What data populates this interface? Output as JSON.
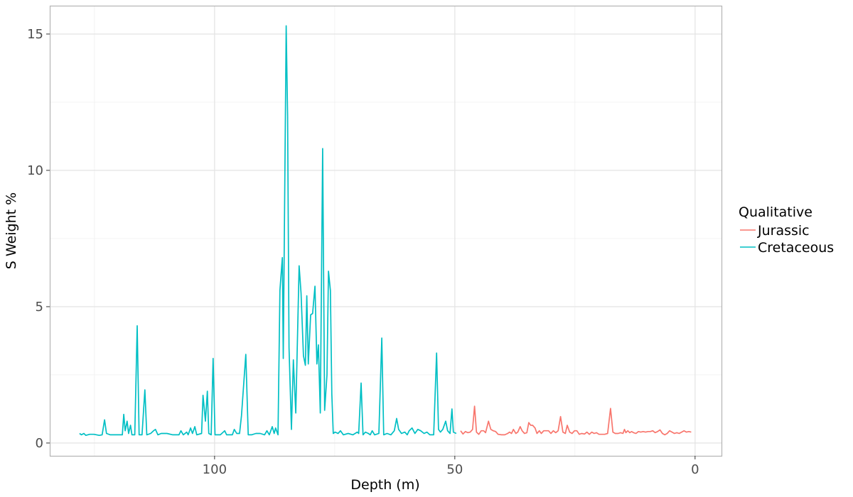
{
  "chart_data": {
    "type": "line",
    "title": "",
    "xlabel": "Depth (m)",
    "ylabel": "S Weight %",
    "xlim": [
      134.3,
      -5.5
    ],
    "x_reversed": true,
    "ylim": [
      -0.47,
      16.04
    ],
    "x_ticks": [
      100,
      50,
      0
    ],
    "x_tick_labels": [
      "100",
      "50",
      "0"
    ],
    "y_ticks": [
      0,
      5,
      10,
      15
    ],
    "y_tick_labels": [
      "0",
      "5",
      "10",
      "15"
    ],
    "grid": true,
    "legend": {
      "title": "Qualitative",
      "placement": "right"
    },
    "series": [
      {
        "name": "Jurassic",
        "color": "#F8766D",
        "points": [
          [
            48.8,
            0.45
          ],
          [
            48.3,
            0.33
          ],
          [
            47.8,
            0.42
          ],
          [
            47.3,
            0.38
          ],
          [
            46.8,
            0.4
          ],
          [
            46.3,
            0.5
          ],
          [
            45.9,
            1.35
          ],
          [
            45.5,
            0.4
          ],
          [
            45.0,
            0.32
          ],
          [
            44.5,
            0.45
          ],
          [
            44.0,
            0.45
          ],
          [
            43.6,
            0.38
          ],
          [
            43.0,
            0.8
          ],
          [
            42.5,
            0.5
          ],
          [
            42.0,
            0.45
          ],
          [
            41.5,
            0.42
          ],
          [
            41.0,
            0.32
          ],
          [
            40.3,
            0.3
          ],
          [
            39.6,
            0.3
          ],
          [
            39.0,
            0.35
          ],
          [
            38.6,
            0.4
          ],
          [
            38.2,
            0.35
          ],
          [
            37.8,
            0.5
          ],
          [
            37.3,
            0.35
          ],
          [
            36.9,
            0.4
          ],
          [
            36.4,
            0.6
          ],
          [
            36.0,
            0.45
          ],
          [
            35.5,
            0.35
          ],
          [
            35.0,
            0.38
          ],
          [
            34.6,
            0.75
          ],
          [
            34.2,
            0.65
          ],
          [
            33.8,
            0.65
          ],
          [
            33.3,
            0.55
          ],
          [
            32.9,
            0.35
          ],
          [
            32.4,
            0.45
          ],
          [
            32.0,
            0.35
          ],
          [
            31.5,
            0.45
          ],
          [
            31.0,
            0.45
          ],
          [
            30.5,
            0.45
          ],
          [
            30.0,
            0.35
          ],
          [
            29.5,
            0.45
          ],
          [
            29.0,
            0.38
          ],
          [
            28.5,
            0.45
          ],
          [
            28.0,
            0.97
          ],
          [
            27.5,
            0.4
          ],
          [
            27.0,
            0.35
          ],
          [
            26.6,
            0.65
          ],
          [
            26.1,
            0.4
          ],
          [
            25.6,
            0.35
          ],
          [
            25.1,
            0.45
          ],
          [
            24.6,
            0.45
          ],
          [
            24.1,
            0.32
          ],
          [
            23.6,
            0.35
          ],
          [
            23.0,
            0.33
          ],
          [
            22.5,
            0.4
          ],
          [
            22.0,
            0.32
          ],
          [
            21.5,
            0.4
          ],
          [
            21.0,
            0.35
          ],
          [
            20.5,
            0.38
          ],
          [
            20.0,
            0.32
          ],
          [
            19.4,
            0.32
          ],
          [
            18.8,
            0.32
          ],
          [
            18.2,
            0.35
          ],
          [
            17.6,
            1.27
          ],
          [
            17.1,
            0.4
          ],
          [
            16.6,
            0.35
          ],
          [
            16.0,
            0.35
          ],
          [
            15.5,
            0.38
          ],
          [
            15.0,
            0.35
          ],
          [
            14.7,
            0.5
          ],
          [
            14.4,
            0.38
          ],
          [
            14.0,
            0.45
          ],
          [
            13.6,
            0.38
          ],
          [
            13.2,
            0.42
          ],
          [
            12.8,
            0.38
          ],
          [
            12.3,
            0.35
          ],
          [
            11.8,
            0.42
          ],
          [
            11.3,
            0.4
          ],
          [
            10.8,
            0.42
          ],
          [
            10.3,
            0.4
          ],
          [
            9.8,
            0.42
          ],
          [
            9.3,
            0.42
          ],
          [
            8.8,
            0.45
          ],
          [
            8.3,
            0.38
          ],
          [
            7.8,
            0.42
          ],
          [
            7.3,
            0.48
          ],
          [
            6.8,
            0.35
          ],
          [
            6.3,
            0.3
          ],
          [
            5.8,
            0.35
          ],
          [
            5.3,
            0.45
          ],
          [
            4.8,
            0.4
          ],
          [
            4.3,
            0.35
          ],
          [
            3.8,
            0.38
          ],
          [
            3.3,
            0.35
          ],
          [
            2.8,
            0.4
          ],
          [
            2.3,
            0.45
          ],
          [
            1.8,
            0.4
          ],
          [
            1.3,
            0.42
          ],
          [
            0.8,
            0.4
          ]
        ]
      },
      {
        "name": "Cretaceous",
        "color": "#00BFC4",
        "points": [
          [
            128.1,
            0.35
          ],
          [
            127.7,
            0.3
          ],
          [
            127.2,
            0.35
          ],
          [
            126.8,
            0.28
          ],
          [
            126.0,
            0.32
          ],
          [
            125.1,
            0.32
          ],
          [
            124.0,
            0.28
          ],
          [
            123.4,
            0.3
          ],
          [
            122.9,
            0.85
          ],
          [
            122.5,
            0.35
          ],
          [
            121.7,
            0.3
          ],
          [
            120.7,
            0.3
          ],
          [
            119.8,
            0.3
          ],
          [
            119.2,
            0.3
          ],
          [
            118.9,
            1.05
          ],
          [
            118.6,
            0.45
          ],
          [
            118.2,
            0.8
          ],
          [
            117.9,
            0.35
          ],
          [
            117.5,
            0.65
          ],
          [
            117.2,
            0.3
          ],
          [
            116.6,
            0.3
          ],
          [
            116.1,
            4.3
          ],
          [
            115.7,
            0.3
          ],
          [
            115.1,
            0.3
          ],
          [
            114.5,
            1.95
          ],
          [
            114.1,
            0.3
          ],
          [
            113.3,
            0.35
          ],
          [
            112.7,
            0.45
          ],
          [
            112.3,
            0.5
          ],
          [
            111.8,
            0.3
          ],
          [
            111.1,
            0.35
          ],
          [
            109.9,
            0.35
          ],
          [
            108.7,
            0.3
          ],
          [
            107.4,
            0.3
          ],
          [
            107.0,
            0.45
          ],
          [
            106.5,
            0.3
          ],
          [
            105.8,
            0.4
          ],
          [
            105.5,
            0.3
          ],
          [
            105.0,
            0.55
          ],
          [
            104.6,
            0.35
          ],
          [
            104.1,
            0.6
          ],
          [
            103.7,
            0.3
          ],
          [
            102.7,
            0.35
          ],
          [
            102.4,
            1.75
          ],
          [
            101.9,
            0.8
          ],
          [
            101.5,
            1.9
          ],
          [
            101.2,
            0.35
          ],
          [
            100.7,
            0.3
          ],
          [
            100.3,
            3.1
          ],
          [
            99.9,
            0.3
          ],
          [
            98.8,
            0.3
          ],
          [
            97.9,
            0.45
          ],
          [
            97.5,
            0.3
          ],
          [
            96.3,
            0.3
          ],
          [
            95.9,
            0.5
          ],
          [
            95.4,
            0.35
          ],
          [
            94.8,
            0.35
          ],
          [
            94.4,
            1.0
          ],
          [
            93.5,
            3.25
          ],
          [
            93.0,
            0.3
          ],
          [
            92.3,
            0.3
          ],
          [
            91.4,
            0.35
          ],
          [
            90.5,
            0.35
          ],
          [
            89.6,
            0.3
          ],
          [
            89.1,
            0.45
          ],
          [
            88.6,
            0.3
          ],
          [
            88.0,
            0.6
          ],
          [
            87.6,
            0.35
          ],
          [
            87.3,
            0.55
          ],
          [
            86.8,
            0.3
          ],
          [
            86.4,
            5.6
          ],
          [
            85.9,
            6.8
          ],
          [
            85.7,
            3.1
          ],
          [
            85.1,
            15.3
          ],
          [
            84.8,
            12.0
          ],
          [
            84.5,
            3.5
          ],
          [
            84.0,
            0.5
          ],
          [
            83.6,
            3.05
          ],
          [
            83.1,
            1.1
          ],
          [
            82.4,
            6.5
          ],
          [
            82.0,
            5.5
          ],
          [
            81.5,
            3.2
          ],
          [
            81.1,
            2.85
          ],
          [
            80.8,
            5.4
          ],
          [
            80.5,
            2.9
          ],
          [
            80.0,
            4.7
          ],
          [
            79.6,
            4.75
          ],
          [
            79.1,
            5.75
          ],
          [
            78.7,
            2.9
          ],
          [
            78.4,
            3.6
          ],
          [
            78.0,
            1.1
          ],
          [
            77.5,
            10.8
          ],
          [
            77.1,
            1.2
          ],
          [
            76.6,
            2.5
          ],
          [
            76.3,
            6.3
          ],
          [
            75.9,
            5.6
          ],
          [
            75.6,
            1.8
          ],
          [
            75.3,
            0.35
          ],
          [
            74.9,
            0.4
          ],
          [
            74.3,
            0.35
          ],
          [
            73.8,
            0.45
          ],
          [
            73.2,
            0.3
          ],
          [
            72.2,
            0.35
          ],
          [
            71.2,
            0.3
          ],
          [
            70.3,
            0.4
          ],
          [
            70.0,
            0.35
          ],
          [
            69.5,
            2.2
          ],
          [
            69.1,
            0.3
          ],
          [
            68.6,
            0.4
          ],
          [
            68.0,
            0.35
          ],
          [
            67.6,
            0.3
          ],
          [
            67.2,
            0.45
          ],
          [
            66.7,
            0.3
          ],
          [
            65.8,
            0.35
          ],
          [
            65.2,
            3.85
          ],
          [
            64.8,
            0.3
          ],
          [
            64.1,
            0.35
          ],
          [
            63.3,
            0.3
          ],
          [
            62.6,
            0.45
          ],
          [
            62.1,
            0.9
          ],
          [
            61.7,
            0.5
          ],
          [
            61.1,
            0.35
          ],
          [
            60.4,
            0.4
          ],
          [
            59.9,
            0.3
          ],
          [
            59.5,
            0.45
          ],
          [
            58.9,
            0.55
          ],
          [
            58.3,
            0.35
          ],
          [
            57.7,
            0.5
          ],
          [
            57.1,
            0.45
          ],
          [
            56.4,
            0.35
          ],
          [
            55.8,
            0.4
          ],
          [
            55.2,
            0.3
          ],
          [
            54.4,
            0.3
          ],
          [
            53.8,
            3.3
          ],
          [
            53.4,
            0.5
          ],
          [
            53.0,
            0.4
          ],
          [
            52.5,
            0.5
          ],
          [
            51.9,
            0.8
          ],
          [
            51.5,
            0.45
          ],
          [
            51.0,
            0.35
          ],
          [
            50.6,
            1.25
          ],
          [
            50.3,
            0.4
          ],
          [
            49.7,
            0.35
          ]
        ]
      }
    ]
  }
}
